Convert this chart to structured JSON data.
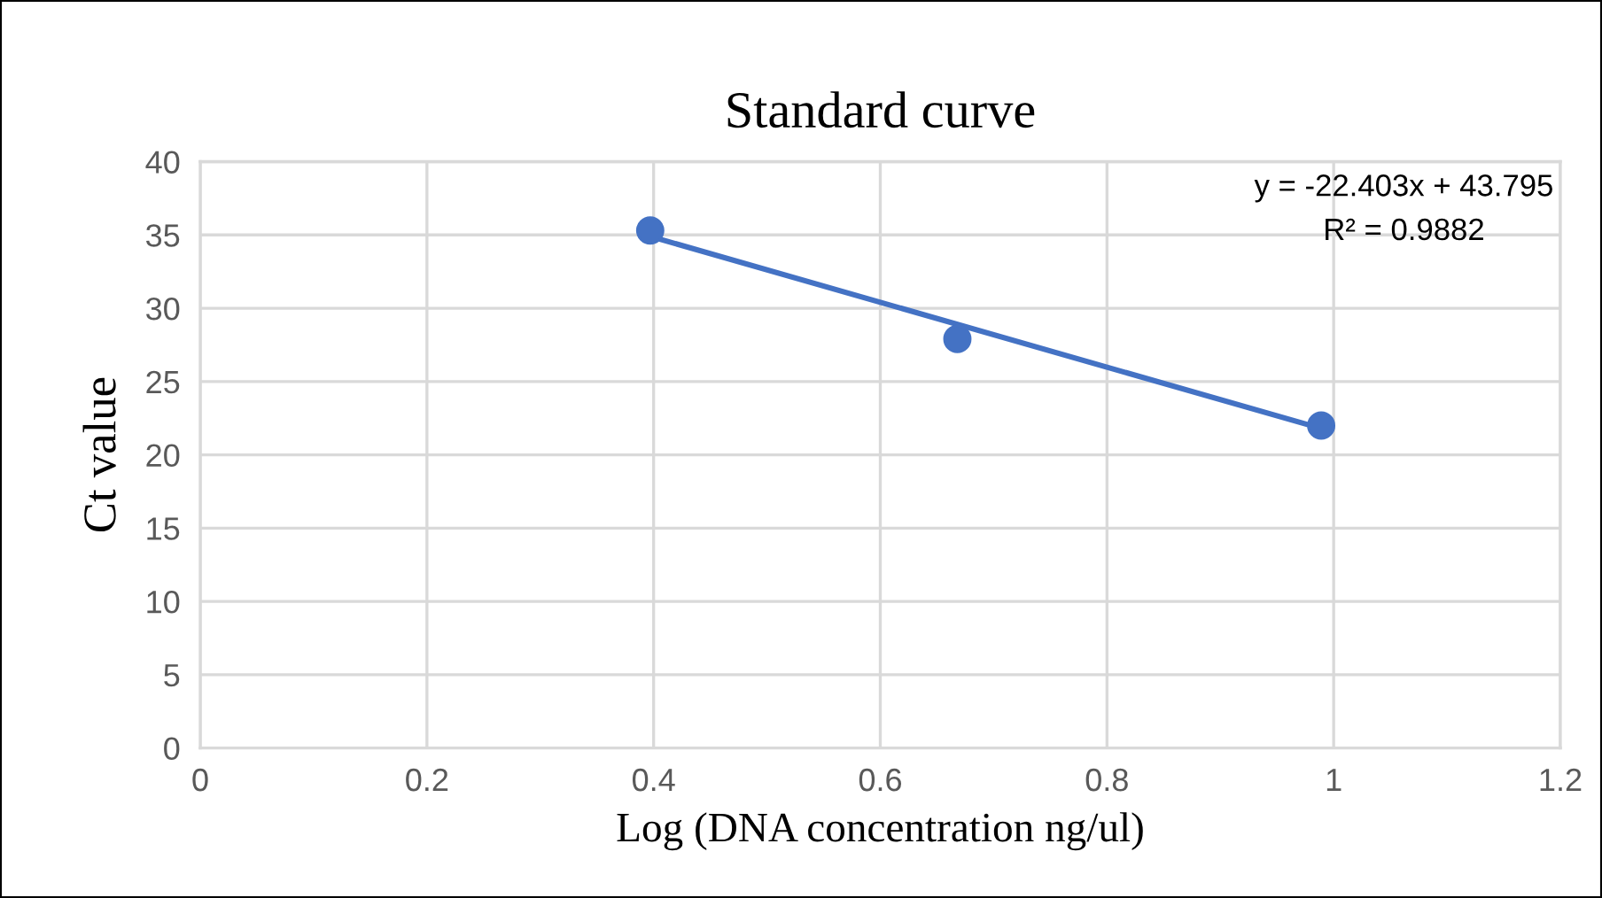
{
  "chart_data": {
    "type": "scatter",
    "title": "Standard curve",
    "xlabel": "Log (DNA concentration ng/ul)",
    "ylabel": "Ct value",
    "series": [
      {
        "color": "#4472c4",
        "marker": "circle",
        "x": [
          0.397,
          0.668,
          0.989
        ],
        "values": [
          35.3,
          27.9,
          22.0
        ]
      },
      {
        "type": "line",
        "marker": "none",
        "color": "#4472c4",
        "x": [
          0.397,
          0.989
        ],
        "values": [
          34.9,
          21.8
        ]
      }
    ],
    "annotations": [
      "y = -22.403x + 43.795",
      "R² = 0.9882"
    ],
    "xlim": [
      0,
      1.2
    ],
    "xticks": [
      0,
      0.2,
      0.4,
      0.6,
      0.8,
      1,
      1.2
    ],
    "ylim": [
      0,
      40
    ],
    "yticks": [
      0,
      5,
      10,
      15,
      20,
      25,
      30,
      35,
      40
    ],
    "grid": true
  }
}
